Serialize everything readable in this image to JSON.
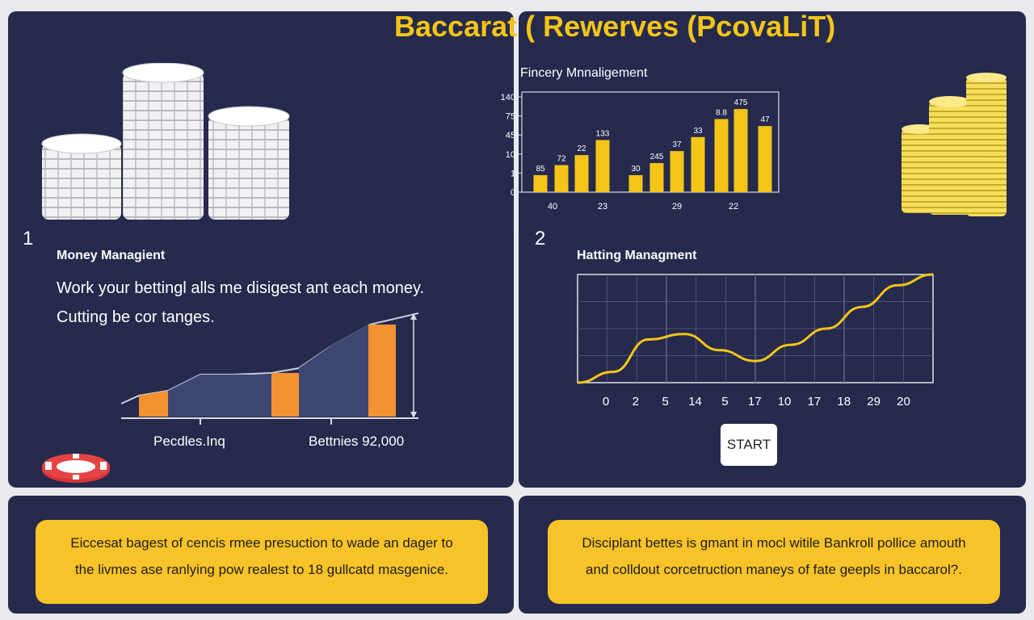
{
  "header": {
    "title": "Baccarat ( Rewerves (PcovaLiT)"
  },
  "panel1": {
    "number": "1",
    "heading": "Money Managient",
    "line1": "Work your bettingl alls me disigest ant each money.",
    "line2": "Cutting be cor tanges.",
    "label_left": "Pecdles.Inq",
    "label_right": "Bettnies 92,000"
  },
  "panel2": {
    "number": "2",
    "heading": "Hatting Managment",
    "start_label": "START"
  },
  "top_chart_heading": "Fincery Mnnaligement",
  "bottom": {
    "left_line1": "Eiccesat bagest of cencis rmee presuction to wade an dager to",
    "left_line2": "the livmes ase ranlying pow realest to 18 gullcatd masgenice.",
    "right_line1": "Disciplant bettes is gmant in mocl witile Bankroll pollice amouth",
    "right_line2": "and colldout corcetruction maneys of fate geepls in baccarol?."
  },
  "chart_data": [
    {
      "type": "bar",
      "title": "Fincery Mnnaligement",
      "yticks": [
        "140",
        "75",
        "45",
        "10",
        "1",
        "0"
      ],
      "xticks": [
        "40",
        "23",
        "29",
        "22"
      ],
      "bar_labels": [
        "85",
        "72",
        "22",
        "133",
        "30",
        "245",
        "37",
        "33",
        "8.8",
        "475",
        "47"
      ],
      "values": [
        0.17,
        0.27,
        0.37,
        0.52,
        0.17,
        0.29,
        0.41,
        0.55,
        0.73,
        0.83,
        0.66
      ]
    },
    {
      "type": "line",
      "title": "Hatting Managment",
      "xticks": [
        "0",
        "2",
        "5",
        "14",
        "5",
        "17",
        "10",
        "17",
        "18",
        "29",
        "20"
      ],
      "values": [
        0.0,
        0.1,
        0.4,
        0.45,
        0.3,
        0.2,
        0.35,
        0.5,
        0.7,
        0.9,
        1.0
      ]
    }
  ],
  "colors": {
    "panel": "#262a4d",
    "accent": "#f4c517",
    "orange": "#f29230",
    "bar_blue": "#3e4772"
  },
  "icons": [
    "white-chips-stack-icon",
    "gold-coins-stack-icon",
    "red-poker-chip-icon",
    "orange-blue-bar-graphic"
  ]
}
